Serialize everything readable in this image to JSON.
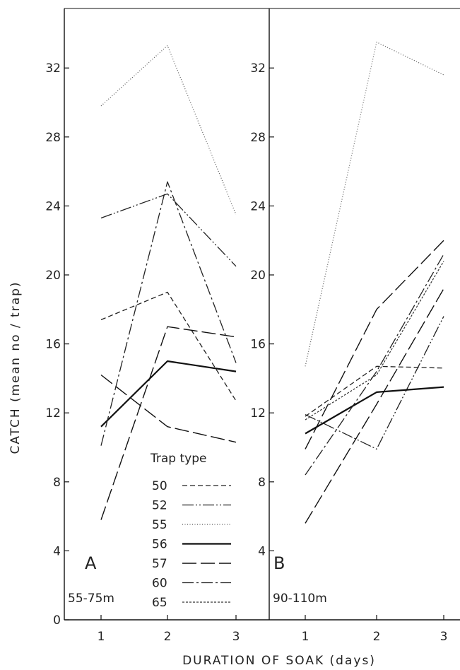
{
  "chart_data": {
    "type": "line",
    "xlabel": "DURATION OF SOAK (days)",
    "ylabel": "CATCH (mean no / trap)",
    "x": [
      1,
      2,
      3
    ],
    "ylim": [
      0,
      35
    ],
    "yticks": [
      0,
      4,
      8,
      12,
      16,
      20,
      24,
      28,
      32
    ],
    "legend_title": "Trap type",
    "legend_placement": "bottom-right of panel A",
    "styles": {
      "50": {
        "dash": "7,4",
        "width": 1.3,
        "color": "#222222"
      },
      "52": {
        "dash": "16,3,2,3,2,3",
        "width": 1.3,
        "color": "#222222"
      },
      "55": {
        "dash": "1,2.5",
        "width": 1.2,
        "color": "#555555"
      },
      "56": {
        "dash": "",
        "width": 2.2,
        "color": "#111111"
      },
      "57": {
        "dash": "20,6",
        "width": 1.4,
        "color": "#111111"
      },
      "60": {
        "dash": "16,4,3,4",
        "width": 1.3,
        "color": "#222222"
      },
      "65": {
        "dash": "3,2",
        "width": 1.2,
        "color": "#333333"
      }
    },
    "panels": [
      {
        "label": "A",
        "depth": "55-75m",
        "x_tick_labels": [
          "1",
          "2",
          "3"
        ],
        "series": [
          {
            "name": "50",
            "values": [
              17.4,
              19.0,
              12.7
            ]
          },
          {
            "name": "52",
            "values": [
              23.3,
              24.7,
              20.5
            ]
          },
          {
            "name": "55",
            "values": [
              29.8,
              33.3,
              23.5
            ]
          },
          {
            "name": "56",
            "values": [
              11.2,
              15.0,
              14.4
            ]
          },
          {
            "name": "57",
            "values": [
              5.8,
              17.0,
              16.4
            ]
          },
          {
            "name": "57",
            "values": [
              14.2,
              11.2,
              10.3
            ]
          },
          {
            "name": "60",
            "values": [
              10.1,
              25.4,
              14.9
            ]
          }
        ]
      },
      {
        "label": "B",
        "depth": "90-110m",
        "x_tick_labels": [
          "1",
          "2",
          "3"
        ],
        "series": [
          {
            "name": "50",
            "values": [
              11.8,
              14.7,
              14.6
            ]
          },
          {
            "name": "52",
            "values": [
              11.9,
              9.9,
              17.6
            ]
          },
          {
            "name": "55",
            "values": [
              14.7,
              33.5,
              31.6
            ]
          },
          {
            "name": "56",
            "values": [
              10.8,
              13.2,
              13.5
            ]
          },
          {
            "name": "57",
            "values": [
              5.6,
              12.5,
              19.2
            ]
          },
          {
            "name": "57",
            "values": [
              9.9,
              18.0,
              22.0
            ]
          },
          {
            "name": "60",
            "values": [
              8.4,
              14.4,
              21.2
            ]
          },
          {
            "name": "65",
            "values": [
              11.6,
              14.2,
              20.8
            ]
          }
        ]
      }
    ],
    "legend": [
      "50",
      "52",
      "55",
      "56",
      "57",
      "60",
      "65"
    ]
  }
}
